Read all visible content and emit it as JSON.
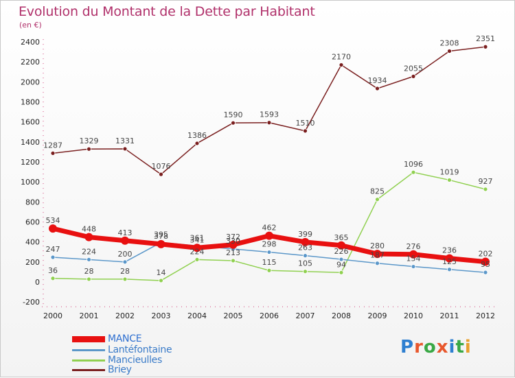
{
  "title": "Evolution du Montant de la Dette par Habitant",
  "subtitle": "(en €)",
  "logo": {
    "text": "Proxiti",
    "letter_colors": [
      "#2e7fd0",
      "#e8572c",
      "#39a845",
      "#e8572c",
      "#2e7fd0",
      "#39a845",
      "#e8a02c"
    ]
  },
  "chart_data": {
    "type": "line",
    "title": "Evolution du Montant de la Dette par Habitant",
    "subtitle": "(en €)",
    "xlabel": "",
    "ylabel": "",
    "x": [
      "2000",
      "2001",
      "2002",
      "2003",
      "2004",
      "2005",
      "2006",
      "2007",
      "2008",
      "2009",
      "2010",
      "2011",
      "2012"
    ],
    "ylim": [
      -200,
      2400
    ],
    "yticks": [
      -200,
      0,
      200,
      400,
      600,
      800,
      1000,
      1200,
      1400,
      1600,
      1800,
      2000,
      2200,
      2400
    ],
    "grid": false,
    "legend_position": "bottom-left",
    "series": [
      {
        "name": "MANCE",
        "color": "#e81010",
        "width": 7,
        "marker": 6,
        "values": [
          534,
          448,
          413,
          378,
          341,
          372,
          462,
          399,
          365,
          280,
          276,
          236,
          202
        ],
        "labels": [
          "534",
          "448",
          "413",
          "378",
          "341",
          "372",
          "462",
          "399",
          "365",
          "280",
          "276",
          "236",
          "202"
        ]
      },
      {
        "name": "Lantéfontaine",
        "color": "#5b97c9",
        "width": 1.5,
        "marker": 3,
        "values": [
          247,
          224,
          200,
          395,
          361,
          330,
          298,
          263,
          226,
          187,
          154,
          125,
          95
        ],
        "labels": [
          "247",
          "224",
          "200",
          "395",
          "361",
          "330",
          "298",
          "263",
          "226",
          "187",
          "154",
          "125",
          "95"
        ]
      },
      {
        "name": "Mancieulles",
        "color": "#90d050",
        "width": 1.5,
        "marker": 3,
        "values": [
          36,
          28,
          28,
          14,
          224,
          213,
          115,
          105,
          94,
          825,
          1096,
          1019,
          927
        ],
        "labels": [
          "36",
          "28",
          "28",
          "14",
          "224",
          "213",
          "115",
          "105",
          "94",
          "825",
          "1096",
          "1019",
          "927"
        ]
      },
      {
        "name": "Briey",
        "color": "#7a1f1f",
        "width": 1.5,
        "marker": 3,
        "values": [
          1287,
          1329,
          1331,
          1076,
          1386,
          1590,
          1593,
          1510,
          2170,
          1934,
          2055,
          2308,
          2351
        ],
        "labels": [
          "1287",
          "1329",
          "1331",
          "1076",
          "1386",
          "1590",
          "1593",
          "1510",
          "2170",
          "1934",
          "2055",
          "2308",
          "2351"
        ]
      }
    ]
  }
}
